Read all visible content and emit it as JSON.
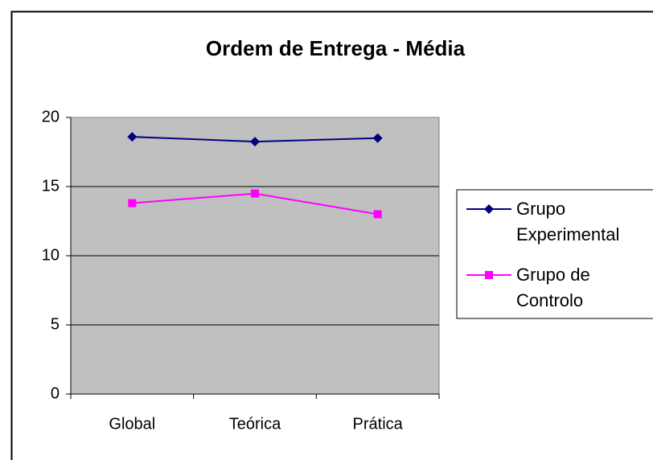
{
  "chart_data": {
    "type": "line",
    "title": "Ordem de Entrega - Média",
    "categories": [
      "Global",
      "Teórica",
      "Prática"
    ],
    "series": [
      {
        "name": "Grupo Experimental",
        "color": "#000080",
        "marker": "diamond",
        "values": [
          18.6,
          18.25,
          18.5
        ]
      },
      {
        "name": "Grupo de Controlo",
        "color": "#ff00ff",
        "marker": "square",
        "values": [
          13.8,
          14.5,
          13.0
        ]
      }
    ],
    "ylim": [
      0,
      20
    ],
    "yticks": [
      0,
      5,
      10,
      15,
      20
    ],
    "grid": true,
    "legend": "right"
  }
}
